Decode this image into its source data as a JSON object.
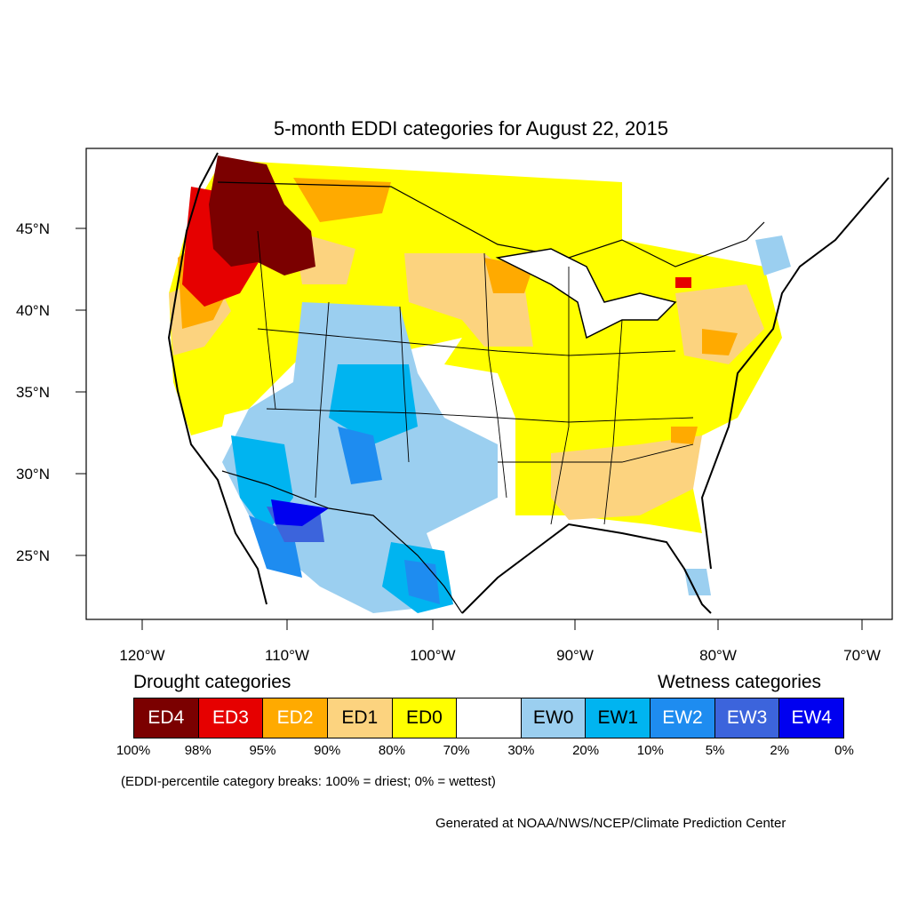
{
  "title": "5-month EDDI categories for August 22, 2015",
  "axes": {
    "lat_labels": [
      "45°N",
      "40°N",
      "35°N",
      "30°N",
      "25°N"
    ],
    "lon_labels": [
      "120°W",
      "110°W",
      "100°W",
      "90°W",
      "80°W",
      "70°W"
    ]
  },
  "legend": {
    "drought_heading": "Drought categories",
    "wetness_heading": "Wetness categories",
    "categories": [
      {
        "label": "ED4",
        "color": "#7b0000",
        "text_color": "#ffffff"
      },
      {
        "label": "ED3",
        "color": "#e60000",
        "text_color": "#ffffff"
      },
      {
        "label": "ED2",
        "color": "#ffaa00",
        "text_color": "#ffffff"
      },
      {
        "label": "ED1",
        "color": "#fcd37f",
        "text_color": "#000000"
      },
      {
        "label": "ED0",
        "color": "#ffff00",
        "text_color": "#000000"
      },
      {
        "label": "",
        "color": "#ffffff",
        "text_color": "#000000"
      },
      {
        "label": "EW0",
        "color": "#9bcff0",
        "text_color": "#000000"
      },
      {
        "label": "EW1",
        "color": "#00b4f0",
        "text_color": "#000000"
      },
      {
        "label": "EW2",
        "color": "#1e8cf0",
        "text_color": "#ffffff"
      },
      {
        "label": "EW3",
        "color": "#3c64dc",
        "text_color": "#ffffff"
      },
      {
        "label": "EW4",
        "color": "#0000f0",
        "text_color": "#ffffff"
      }
    ],
    "percent_breaks": [
      "100%",
      "98%",
      "95%",
      "90%",
      "80%",
      "70%",
      "30%",
      "20%",
      "10%",
      "5%",
      "2%",
      "0%"
    ]
  },
  "note": "(EDDI-percentile category breaks: 100% = driest; 0% = wettest)",
  "credit": "Generated at NOAA/NWS/NCEP/Climate Prediction Center"
}
